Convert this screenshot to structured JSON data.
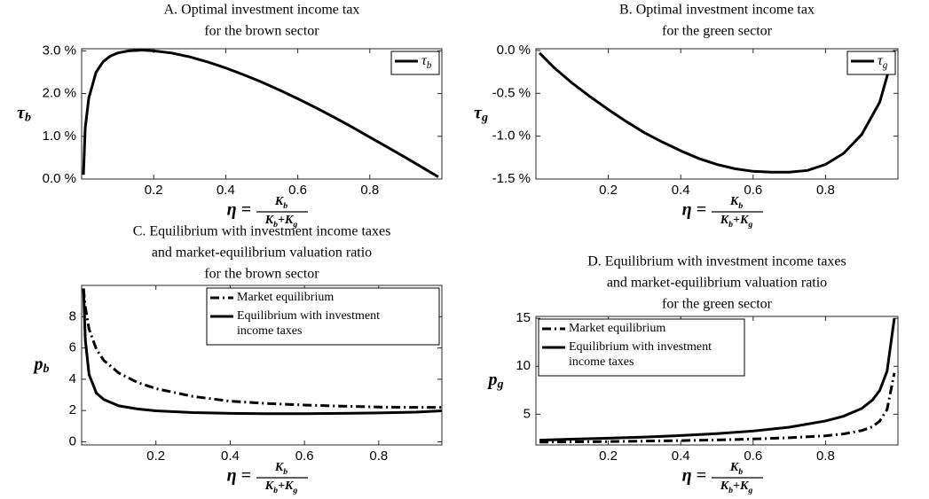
{
  "chart_data": [
    {
      "type": "line",
      "title": [
        "A. Optimal investment income tax",
        "for the brown sector"
      ],
      "xlabel": {
        "lhs": "η =",
        "num": "Kb",
        "den": "Kb+Kg"
      },
      "ylabel": "τb",
      "x": [
        0.005,
        0.01,
        0.02,
        0.04,
        0.06,
        0.08,
        0.1,
        0.13,
        0.17,
        0.2,
        0.25,
        0.3,
        0.35,
        0.4,
        0.45,
        0.5,
        0.55,
        0.6,
        0.65,
        0.7,
        0.75,
        0.8,
        0.85,
        0.9,
        0.95,
        0.99
      ],
      "series": [
        {
          "name": "τb",
          "color": "#000000",
          "style": "solid",
          "values": [
            0.1,
            1.2,
            1.9,
            2.5,
            2.75,
            2.88,
            2.95,
            3.0,
            3.02,
            3.0,
            2.95,
            2.86,
            2.74,
            2.6,
            2.44,
            2.27,
            2.08,
            1.88,
            1.67,
            1.45,
            1.22,
            0.98,
            0.74,
            0.5,
            0.25,
            0.05
          ]
        }
      ],
      "xlim": [
        0,
        1
      ],
      "ylim": [
        0,
        3.05
      ],
      "xticks": [
        0.2,
        0.4,
        0.6,
        0.8
      ],
      "yticks": [
        {
          "value": 0,
          "label": "0.0 %"
        },
        {
          "value": 1,
          "label": "1.0 %"
        },
        {
          "value": 2,
          "label": "2.0 %"
        },
        {
          "value": 3,
          "label": "3.0 %"
        }
      ],
      "legend": "top-right"
    },
    {
      "type": "line",
      "title": [
        "B. Optimal investment income tax",
        "for the green sector"
      ],
      "xlabel": {
        "lhs": "η =",
        "num": "Kb",
        "den": "Kb+Kg"
      },
      "ylabel": "τg",
      "x": [
        0.01,
        0.05,
        0.1,
        0.15,
        0.2,
        0.25,
        0.3,
        0.35,
        0.4,
        0.45,
        0.5,
        0.55,
        0.6,
        0.65,
        0.7,
        0.75,
        0.8,
        0.85,
        0.9,
        0.95,
        0.97,
        0.99
      ],
      "series": [
        {
          "name": "τg",
          "color": "#000000",
          "style": "solid",
          "values": [
            -0.03,
            -0.2,
            -0.38,
            -0.54,
            -0.69,
            -0.83,
            -0.96,
            -1.07,
            -1.17,
            -1.26,
            -1.33,
            -1.38,
            -1.41,
            -1.42,
            -1.42,
            -1.4,
            -1.33,
            -1.2,
            -0.98,
            -0.6,
            -0.3,
            0.0
          ]
        }
      ],
      "xlim": [
        0,
        1
      ],
      "ylim": [
        -1.5,
        0.02
      ],
      "xticks": [
        0.2,
        0.4,
        0.6,
        0.8
      ],
      "yticks": [
        {
          "value": 0,
          "label": "0.0 %"
        },
        {
          "value": -0.5,
          "label": "-0.5 %"
        },
        {
          "value": -1,
          "label": "-1.0 %"
        },
        {
          "value": -1.5,
          "label": "-1.5 %"
        }
      ],
      "legend": "top-right"
    },
    {
      "type": "line",
      "title": [
        "C. Equilibrium with investment income taxes",
        "and market-equilibrium valuation ratio",
        "for the brown sector"
      ],
      "xlabel": {
        "lhs": "η =",
        "num": "Kb",
        "den": "Kb+Kg"
      },
      "ylabel": "pb",
      "x": [
        0.005,
        0.01,
        0.02,
        0.04,
        0.06,
        0.1,
        0.15,
        0.2,
        0.3,
        0.4,
        0.5,
        0.6,
        0.7,
        0.8,
        0.9,
        0.97
      ],
      "series": [
        {
          "name": "Market equilibrium",
          "color": "#000000",
          "style": "dashdot",
          "values": [
            9.8,
            8.6,
            7.2,
            5.9,
            5.2,
            4.4,
            3.8,
            3.4,
            2.9,
            2.6,
            2.45,
            2.35,
            2.28,
            2.22,
            2.2,
            2.2
          ]
        },
        {
          "name": "Equilibrium with investment income taxes",
          "color": "#000000",
          "style": "solid",
          "values": [
            9.8,
            6.5,
            4.3,
            3.1,
            2.7,
            2.3,
            2.1,
            1.98,
            1.87,
            1.82,
            1.8,
            1.8,
            1.82,
            1.85,
            1.9,
            1.98
          ]
        }
      ],
      "xlim": [
        0,
        0.97
      ],
      "ylim": [
        -0.2,
        10
      ],
      "xticks": [
        0.2,
        0.4,
        0.6,
        0.8
      ],
      "yticks": [
        0,
        2,
        4,
        6,
        8
      ],
      "legend": "top-right"
    },
    {
      "type": "line",
      "title": [
        "D. Equilibrium with investment income taxes",
        "and market-equilibrium valuation ratio",
        "for the green sector"
      ],
      "xlabel": {
        "lhs": "η =",
        "num": "Kb",
        "den": "Kb+Kg"
      },
      "ylabel": "pg",
      "x": [
        0.01,
        0.1,
        0.2,
        0.3,
        0.4,
        0.5,
        0.6,
        0.7,
        0.8,
        0.85,
        0.9,
        0.93,
        0.95,
        0.97,
        0.99
      ],
      "series": [
        {
          "name": "Market equilibrium",
          "color": "#000000",
          "style": "dashdot",
          "values": [
            2.1,
            2.12,
            2.15,
            2.2,
            2.25,
            2.32,
            2.42,
            2.55,
            2.75,
            2.95,
            3.3,
            3.7,
            4.3,
            5.5,
            9.3
          ]
        },
        {
          "name": "Equilibrium with investment income taxes",
          "color": "#000000",
          "style": "solid",
          "values": [
            2.3,
            2.4,
            2.5,
            2.62,
            2.78,
            2.98,
            3.25,
            3.65,
            4.3,
            4.8,
            5.6,
            6.5,
            7.5,
            9.5,
            15.0
          ]
        }
      ],
      "xlim": [
        0,
        1
      ],
      "ylim": [
        1.8,
        15.2
      ],
      "xticks": [
        0.2,
        0.4,
        0.6,
        0.8
      ],
      "yticks": [
        5,
        10,
        15
      ],
      "legend": "top-left"
    }
  ]
}
